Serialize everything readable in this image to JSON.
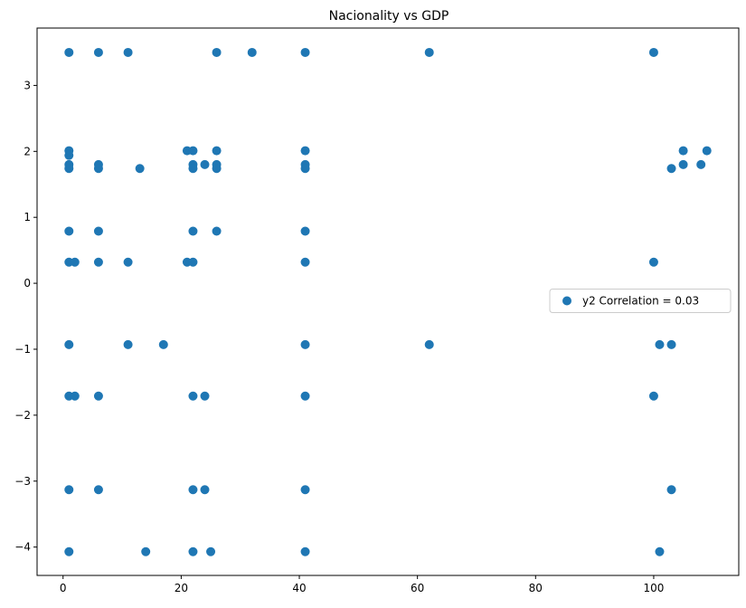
{
  "chart_data": {
    "type": "scatter",
    "title": "Nacionality vs GDP",
    "xlabel": "",
    "ylabel": "",
    "xlim": [
      -4.4,
      114.4
    ],
    "ylim": [
      -4.43,
      3.87
    ],
    "xticks": [
      0,
      20,
      40,
      60,
      80,
      100
    ],
    "xtick_labels": [
      "0",
      "20",
      "40",
      "60",
      "80",
      "100"
    ],
    "yticks": [
      -4,
      -3,
      -2,
      -1,
      0,
      1,
      2,
      3
    ],
    "ytick_labels": [
      "−4",
      "−3",
      "−2",
      "−1",
      "0",
      "1",
      "2",
      "3"
    ],
    "grid": false,
    "legend_position": "center-right",
    "series": [
      {
        "name": "y2 Correlation = 0.03",
        "color": "#1f77b4",
        "points": [
          {
            "x": 1,
            "y": 3.5
          },
          {
            "x": 6,
            "y": 3.5
          },
          {
            "x": 11,
            "y": 3.5
          },
          {
            "x": 26,
            "y": 3.5
          },
          {
            "x": 32,
            "y": 3.5
          },
          {
            "x": 41,
            "y": 3.5
          },
          {
            "x": 62,
            "y": 3.5
          },
          {
            "x": 100,
            "y": 3.5
          },
          {
            "x": 1,
            "y": 2.01
          },
          {
            "x": 21,
            "y": 2.01
          },
          {
            "x": 22,
            "y": 2.01
          },
          {
            "x": 26,
            "y": 2.01
          },
          {
            "x": 41,
            "y": 2.01
          },
          {
            "x": 105,
            "y": 2.01
          },
          {
            "x": 109,
            "y": 2.01
          },
          {
            "x": 1,
            "y": 1.94
          },
          {
            "x": 1,
            "y": 1.8
          },
          {
            "x": 6,
            "y": 1.8
          },
          {
            "x": 22,
            "y": 1.8
          },
          {
            "x": 24,
            "y": 1.8
          },
          {
            "x": 26,
            "y": 1.8
          },
          {
            "x": 41,
            "y": 1.8
          },
          {
            "x": 105,
            "y": 1.8
          },
          {
            "x": 108,
            "y": 1.8
          },
          {
            "x": 1,
            "y": 1.74
          },
          {
            "x": 6,
            "y": 1.74
          },
          {
            "x": 13,
            "y": 1.74
          },
          {
            "x": 22,
            "y": 1.74
          },
          {
            "x": 26,
            "y": 1.74
          },
          {
            "x": 41,
            "y": 1.74
          },
          {
            "x": 103,
            "y": 1.74
          },
          {
            "x": 1,
            "y": 0.79
          },
          {
            "x": 6,
            "y": 0.79
          },
          {
            "x": 22,
            "y": 0.79
          },
          {
            "x": 26,
            "y": 0.79
          },
          {
            "x": 41,
            "y": 0.79
          },
          {
            "x": 1,
            "y": 0.32
          },
          {
            "x": 2,
            "y": 0.32
          },
          {
            "x": 6,
            "y": 0.32
          },
          {
            "x": 11,
            "y": 0.32
          },
          {
            "x": 21,
            "y": 0.32
          },
          {
            "x": 22,
            "y": 0.32
          },
          {
            "x": 41,
            "y": 0.32
          },
          {
            "x": 100,
            "y": 0.32
          },
          {
            "x": 1,
            "y": -0.93
          },
          {
            "x": 11,
            "y": -0.93
          },
          {
            "x": 17,
            "y": -0.93
          },
          {
            "x": 41,
            "y": -0.93
          },
          {
            "x": 62,
            "y": -0.93
          },
          {
            "x": 101,
            "y": -0.93
          },
          {
            "x": 103,
            "y": -0.93
          },
          {
            "x": 1,
            "y": -1.71
          },
          {
            "x": 2,
            "y": -1.71
          },
          {
            "x": 6,
            "y": -1.71
          },
          {
            "x": 22,
            "y": -1.71
          },
          {
            "x": 24,
            "y": -1.71
          },
          {
            "x": 41,
            "y": -1.71
          },
          {
            "x": 100,
            "y": -1.71
          },
          {
            "x": 1,
            "y": -3.13
          },
          {
            "x": 6,
            "y": -3.13
          },
          {
            "x": 22,
            "y": -3.13
          },
          {
            "x": 24,
            "y": -3.13
          },
          {
            "x": 41,
            "y": -3.13
          },
          {
            "x": 103,
            "y": -3.13
          },
          {
            "x": 1,
            "y": -4.07
          },
          {
            "x": 14,
            "y": -4.07
          },
          {
            "x": 22,
            "y": -4.07
          },
          {
            "x": 25,
            "y": -4.07
          },
          {
            "x": 41,
            "y": -4.07
          },
          {
            "x": 101,
            "y": -4.07
          }
        ]
      }
    ]
  }
}
